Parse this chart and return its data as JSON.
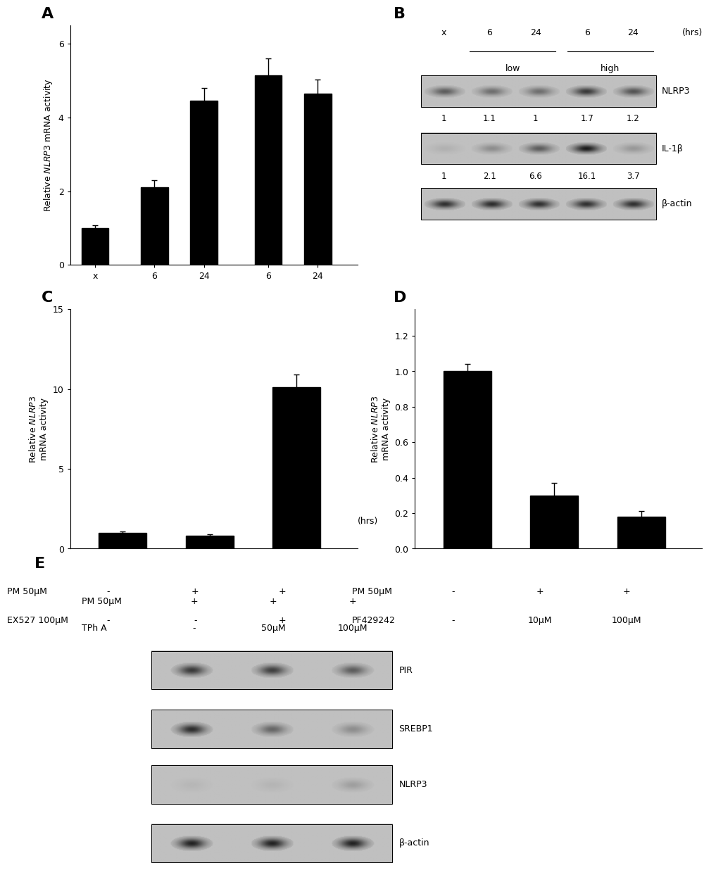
{
  "panel_A": {
    "values": [
      1.0,
      2.1,
      4.45,
      5.15,
      4.65
    ],
    "errors": [
      0.07,
      0.2,
      0.35,
      0.45,
      0.38
    ],
    "xtick_labels": [
      "x",
      "6",
      "24",
      "6",
      "24"
    ],
    "hrs_label": "(hrs)",
    "ylim": [
      0,
      6.5
    ],
    "yticks": [
      0,
      2,
      4,
      6
    ],
    "bar_color": "#000000",
    "bar_width": 0.55
  },
  "panel_B": {
    "column_labels": [
      "x",
      "6",
      "24",
      "6",
      "24"
    ],
    "hrs_label": "(hrs)",
    "nlrp3_values": [
      "1",
      "1.1",
      "1",
      "1.7",
      "1.2"
    ],
    "il1b_values": [
      "1",
      "2.1",
      "6.6",
      "16.1",
      "3.7"
    ],
    "nlrp3_intensities": [
      0.55,
      0.45,
      0.45,
      0.75,
      0.6
    ],
    "il1b_intensities": [
      0.08,
      0.28,
      0.55,
      0.92,
      0.22
    ],
    "actin_intensities": [
      0.8,
      0.82,
      0.8,
      0.8,
      0.8
    ]
  },
  "panel_C": {
    "values": [
      1.0,
      0.8,
      10.1
    ],
    "errors": [
      0.08,
      0.08,
      0.8
    ],
    "ylim": [
      0,
      15
    ],
    "yticks": [
      0,
      5,
      10,
      15
    ],
    "bar_color": "#000000",
    "bar_width": 0.55,
    "row_labels": [
      "PM 50μM",
      "EX527 100μM"
    ],
    "row_values": [
      [
        "-",
        "+",
        "+"
      ],
      [
        "-",
        "-",
        "+"
      ]
    ]
  },
  "panel_D": {
    "values": [
      1.0,
      0.3,
      0.18
    ],
    "errors": [
      0.04,
      0.07,
      0.03
    ],
    "ylim": [
      0,
      1.35
    ],
    "yticks": [
      0.0,
      0.2,
      0.4,
      0.6,
      0.8,
      1.0,
      1.2
    ],
    "bar_color": "#000000",
    "bar_width": 0.55,
    "row_labels": [
      "PM 50μM",
      "PF429242"
    ],
    "row_values": [
      [
        "-",
        "+",
        "+"
      ],
      [
        "-",
        "10μM",
        "100μM"
      ]
    ]
  },
  "panel_E": {
    "row_labels": [
      "PM 50μM",
      "TPh A"
    ],
    "row_values": [
      [
        "+",
        "+",
        "+"
      ],
      [
        "-",
        "50μM",
        "100μM"
      ]
    ],
    "band_labels": [
      "PIR",
      "SREBP1",
      "NLRP3",
      "β-actin"
    ],
    "pir_intensities": [
      0.75,
      0.72,
      0.55
    ],
    "srebp1_intensities": [
      0.82,
      0.5,
      0.28
    ],
    "nlrp3_intensities": [
      0.05,
      0.06,
      0.18
    ],
    "actin_intensities": [
      0.88,
      0.88,
      0.88
    ]
  },
  "background_color": "#ffffff",
  "panel_label_fontsize": 16,
  "axis_fontsize": 9,
  "tick_fontsize": 9
}
